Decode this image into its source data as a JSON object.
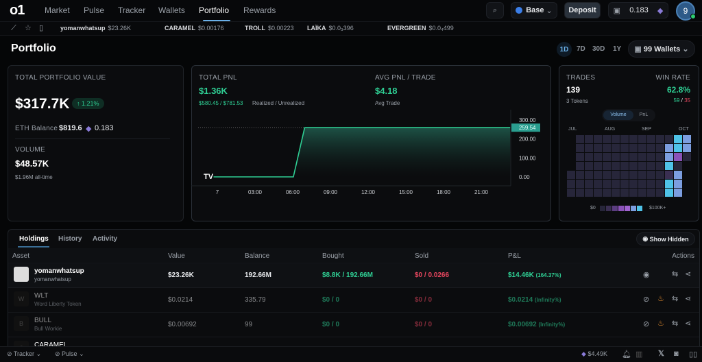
{
  "nav": {
    "logo": "o1",
    "items": [
      "Market",
      "Pulse",
      "Tracker",
      "Wallets",
      "Portfolio",
      "Rewards"
    ],
    "active": "Portfolio",
    "chain": "Base",
    "deposit": "Deposit",
    "wallet_balance": "0.183",
    "avatar": "9"
  },
  "ticker": [
    {
      "name": "yomanwhatsup",
      "price": "$23.26K"
    },
    {
      "name": "CARAMEL",
      "price": "$0.00176"
    },
    {
      "name": "TROLL",
      "price": "$0.00223"
    },
    {
      "name": "LAÏKA",
      "price": "$0.0₃396"
    },
    {
      "name": "EVERGREEN",
      "price": "$0.0₄499"
    }
  ],
  "page": {
    "title": "Portfolio",
    "timeframes": [
      "1D",
      "7D",
      "30D",
      "1Y"
    ],
    "active_timeframe": "1D",
    "wallets": "99 Wallets"
  },
  "summary": {
    "total_label": "TOTAL PORTFOLIO VALUE",
    "total": "$317.7K",
    "change": "↑ 1.21%",
    "eth_label": "ETH Balance",
    "eth_usd": "$819.6",
    "eth": "0.183",
    "volume_label": "VOLUME",
    "volume": "$48.57K",
    "volume_all": "$1.96M all-time"
  },
  "pnl": {
    "label": "TOTAL PNL",
    "value": "$1.36K",
    "realized": "$580.45 / $781.53",
    "realized_label": "Realized / Unrealized",
    "avg_label": "AVG PNL / TRADE",
    "avg": "$4.18",
    "avg_sub": "Avg Trade"
  },
  "chart_data": {
    "type": "area",
    "x_ticks": [
      "7",
      "03:00",
      "06:00",
      "09:00",
      "12:00",
      "15:00",
      "18:00",
      "21:00"
    ],
    "y_ticks": [
      "300.00",
      "200.00",
      "100.00",
      "0.00"
    ],
    "ylim": [
      0,
      300
    ],
    "xlim_hours": [
      0,
      24
    ],
    "points": [
      [
        -0.3,
        0
      ],
      [
        6.05,
        0
      ],
      [
        6.95,
        259.54
      ],
      [
        23.3,
        259.54
      ]
    ],
    "last_value": "259.54",
    "color": "#2fcf94",
    "grid": false
  },
  "trades": {
    "label": "TRADES",
    "count": "139",
    "tokens": "3 Tokens",
    "winrate_label": "WIN RATE",
    "winrate": "62.8%",
    "wins": "59",
    "losses": "35",
    "toggle": [
      "Volume",
      "PnL"
    ],
    "active_toggle": "Volume",
    "months": [
      "JUL",
      "AUG",
      "SEP",
      "OCT"
    ],
    "legend_min": "$0",
    "legend_max": "$100K+",
    "levels_colors": [
      "#1c1c2c",
      "#27263a",
      "#3a2f52",
      "#5b3d80",
      "#8a52b8",
      "#a063d0",
      "#7c9ee0",
      "#4fc3e8"
    ],
    "heatmap": [
      [
        -1,
        1,
        1,
        1,
        1,
        1,
        1,
        1,
        1,
        1,
        1,
        1,
        7,
        6
      ],
      [
        -1,
        1,
        1,
        1,
        1,
        1,
        1,
        1,
        1,
        1,
        1,
        6,
        7,
        6
      ],
      [
        -1,
        1,
        1,
        1,
        1,
        1,
        1,
        1,
        1,
        1,
        1,
        6,
        4,
        1
      ],
      [
        -1,
        1,
        1,
        1,
        1,
        1,
        1,
        1,
        1,
        1,
        1,
        7,
        1,
        -1
      ],
      [
        1,
        1,
        1,
        1,
        1,
        1,
        1,
        1,
        1,
        1,
        1,
        2,
        6,
        -1
      ],
      [
        1,
        1,
        1,
        1,
        1,
        1,
        1,
        1,
        1,
        1,
        1,
        7,
        6,
        -1
      ],
      [
        1,
        1,
        1,
        1,
        1,
        1,
        1,
        1,
        1,
        1,
        1,
        7,
        6,
        -1
      ]
    ]
  },
  "holdings": {
    "tabs": [
      "Holdings",
      "History",
      "Activity"
    ],
    "show_hidden": "Show Hidden",
    "columns": [
      "Asset",
      "Value",
      "Balance",
      "Bought",
      "Sold",
      "P&L",
      "Actions"
    ],
    "rows": [
      {
        "symbol": "yomanwhatsup",
        "name": "yomanwhatsup",
        "value": "$23.26K",
        "balance": "192.66M",
        "bought": "$8.8K / 192.66M",
        "sold": "$0 / 0.0266",
        "pnl": "$14.46K",
        "pnl_pct": "(164.37%)"
      },
      {
        "symbol": "WLT",
        "name": "Word Liberty Token",
        "value": "$0.0214",
        "balance": "335.79",
        "bought": "$0 / 0",
        "sold": "$0 / 0",
        "pnl": "$0.0214",
        "pnl_pct": "(Infinity%)"
      },
      {
        "symbol": "BULL",
        "name": "Bull Workie",
        "value": "$0.00692",
        "balance": "99",
        "bought": "$0 / 0",
        "sold": "$0 / 0",
        "pnl": "$0.00692",
        "pnl_pct": "(Infinity%)"
      },
      {
        "symbol": "CARAMEL",
        "name": "",
        "value": "",
        "balance": "",
        "bought": "",
        "sold": "",
        "pnl": "",
        "pnl_pct": ""
      }
    ]
  },
  "footer": {
    "tracker": "Tracker",
    "pulse": "Pulse",
    "eth_price": "$4.49K"
  }
}
